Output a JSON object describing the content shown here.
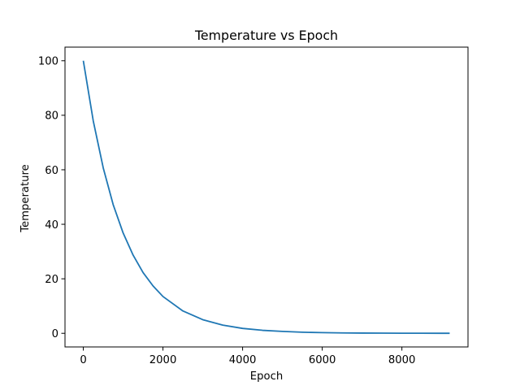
{
  "chart_data": {
    "type": "line",
    "title": "Temperature vs Epoch",
    "xlabel": "Epoch",
    "ylabel": "Temperature",
    "xlim": [
      -460,
      9660
    ],
    "ylim": [
      -5,
      105
    ],
    "xticks": [
      0,
      2000,
      4000,
      6000,
      8000
    ],
    "xtick_labels": [
      "0",
      "2000",
      "4000",
      "6000",
      "8000"
    ],
    "yticks": [
      0,
      20,
      40,
      60,
      80,
      100
    ],
    "ytick_labels": [
      "0",
      "20",
      "40",
      "60",
      "80",
      "100"
    ],
    "grid": false,
    "series": [
      {
        "color": "#1f77b4",
        "x": [
          0,
          250,
          500,
          750,
          1000,
          1250,
          1500,
          1750,
          2000,
          2500,
          3000,
          3500,
          4000,
          4500,
          5000,
          5500,
          6000,
          6500,
          7000,
          7500,
          8000,
          8500,
          9000,
          9200
        ],
        "y": [
          100,
          77.9,
          60.7,
          47.2,
          36.8,
          28.7,
          22.3,
          17.4,
          13.5,
          8.2,
          5.0,
          3.0,
          1.8,
          1.1,
          0.7,
          0.4,
          0.25,
          0.15,
          0.09,
          0.06,
          0.03,
          0.02,
          0.01,
          0.01
        ]
      }
    ]
  }
}
